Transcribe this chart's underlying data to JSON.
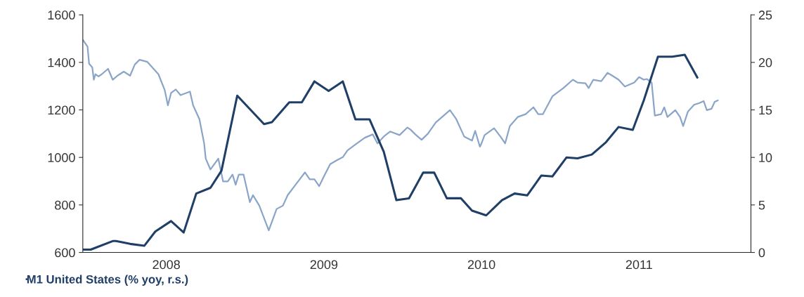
{
  "chart_data": {
    "type": "line",
    "xlim": [
      2007.97,
      2012.21
    ],
    "xticks": [
      {
        "value": 2008.5,
        "label": "2008"
      },
      {
        "value": 2009.5,
        "label": "2009"
      },
      {
        "value": 2010.5,
        "label": "2010"
      },
      {
        "value": 2011.5,
        "label": "2011"
      }
    ],
    "ylim": [
      600,
      1600
    ],
    "yticks": [
      600,
      800,
      1000,
      1200,
      1400,
      1600
    ],
    "y2lim": [
      0,
      25
    ],
    "y2ticks": [
      0,
      5,
      10,
      15,
      20,
      25
    ],
    "grid": false,
    "legend": "bottom",
    "marker": "none",
    "line_style": "solid",
    "series": [
      {
        "name": "M1 United States (% yoy, r.s.)",
        "color": "#1f3f66",
        "axis": "y2",
        "x": [
          2007.97,
          2008.02,
          2008.16,
          2008.18,
          2008.27,
          2008.36,
          2008.43,
          2008.53,
          2008.61,
          2008.69,
          2008.78,
          2008.85,
          2008.95,
          2009.12,
          2009.17,
          2009.28,
          2009.36,
          2009.44,
          2009.53,
          2009.62,
          2009.7,
          2009.79,
          2009.88,
          2009.96,
          2010.04,
          2010.13,
          2010.2,
          2010.28,
          2010.37,
          2010.44,
          2010.53,
          2010.63,
          2010.71,
          2010.79,
          2010.88,
          2010.95,
          2011.04,
          2011.11,
          2011.2,
          2011.29,
          2011.37,
          2011.46,
          2011.53,
          2011.62,
          2011.71,
          2011.79,
          2011.87
        ],
        "values": [
          0.3,
          0.3,
          1.2,
          1.2,
          0.9,
          0.7,
          2.2,
          3.3,
          2.1,
          6.2,
          6.8,
          8.6,
          16.5,
          13.5,
          13.7,
          15.8,
          15.8,
          18.0,
          17.0,
          18.0,
          14.0,
          14.0,
          10.6,
          5.5,
          5.7,
          8.4,
          8.4,
          5.7,
          5.7,
          4.4,
          3.9,
          5.5,
          6.2,
          6.0,
          8.1,
          8.0,
          10.0,
          9.9,
          10.3,
          11.6,
          13.2,
          12.9,
          16.0,
          20.6,
          20.6,
          20.8,
          18.4
        ]
      },
      {
        "color": "#8aa5c8",
        "x": [
          2007.97,
          2008.0,
          2008.01,
          2008.03,
          2008.04,
          2008.05,
          2008.07,
          2008.09,
          2008.12,
          2008.13,
          2008.16,
          2008.19,
          2008.23,
          2008.27,
          2008.3,
          2008.33,
          2008.38,
          2008.45,
          2008.49,
          2008.51,
          2008.53,
          2008.56,
          2008.59,
          2008.65,
          2008.67,
          2008.71,
          2008.74,
          2008.75,
          2008.78,
          2008.83,
          2008.86,
          2008.89,
          2008.92,
          2008.94,
          2008.96,
          2008.99,
          2009.03,
          2009.05,
          2009.09,
          2009.15,
          2009.2,
          2009.24,
          2009.27,
          2009.32,
          2009.38,
          2009.41,
          2009.44,
          2009.47,
          2009.5,
          2009.54,
          2009.58,
          2009.62,
          2009.65,
          2009.71,
          2009.76,
          2009.81,
          2009.84,
          2009.88,
          2009.92,
          2009.98,
          2010.03,
          2010.05,
          2010.08,
          2010.12,
          2010.16,
          2010.21,
          2010.3,
          2010.34,
          2010.39,
          2010.44,
          2010.46,
          2010.49,
          2010.5,
          2010.52,
          2010.58,
          2010.62,
          2010.65,
          2010.68,
          2010.73,
          2010.78,
          2010.83,
          2010.86,
          2010.89,
          2010.95,
          2011.02,
          2011.08,
          2011.11,
          2011.16,
          2011.18,
          2011.21,
          2011.26,
          2011.3,
          2011.33,
          2011.37,
          2011.41,
          2011.47,
          2011.5,
          2011.53,
          2011.55,
          2011.58,
          2011.6,
          2011.64,
          2011.66,
          2011.68,
          2011.73,
          2011.76,
          2011.78,
          2011.81,
          2011.85,
          2011.88,
          2011.91,
          2011.93,
          2011.96,
          2011.98,
          2012.0
        ],
        "values": [
          1495,
          1466,
          1394,
          1379,
          1327,
          1350,
          1341,
          1350,
          1367,
          1373,
          1327,
          1344,
          1361,
          1344,
          1391,
          1411,
          1402,
          1350,
          1283,
          1219,
          1271,
          1286,
          1262,
          1277,
          1219,
          1161,
          1059,
          995,
          949,
          995,
          899,
          899,
          928,
          885,
          928,
          928,
          812,
          841,
          797,
          693,
          783,
          797,
          841,
          885,
          937,
          908,
          908,
          879,
          920,
          972,
          987,
          1001,
          1030,
          1059,
          1083,
          1097,
          1059,
          1088,
          1109,
          1094,
          1126,
          1117,
          1097,
          1074,
          1100,
          1147,
          1199,
          1161,
          1088,
          1071,
          1112,
          1045,
          1059,
          1094,
          1123,
          1088,
          1059,
          1132,
          1170,
          1182,
          1211,
          1182,
          1182,
          1257,
          1292,
          1327,
          1315,
          1312,
          1292,
          1327,
          1321,
          1356,
          1344,
          1327,
          1298,
          1315,
          1338,
          1327,
          1330,
          1315,
          1176,
          1182,
          1211,
          1170,
          1199,
          1170,
          1132,
          1193,
          1222,
          1228,
          1237,
          1199,
          1205,
          1234,
          1240
        ]
      }
    ]
  }
}
